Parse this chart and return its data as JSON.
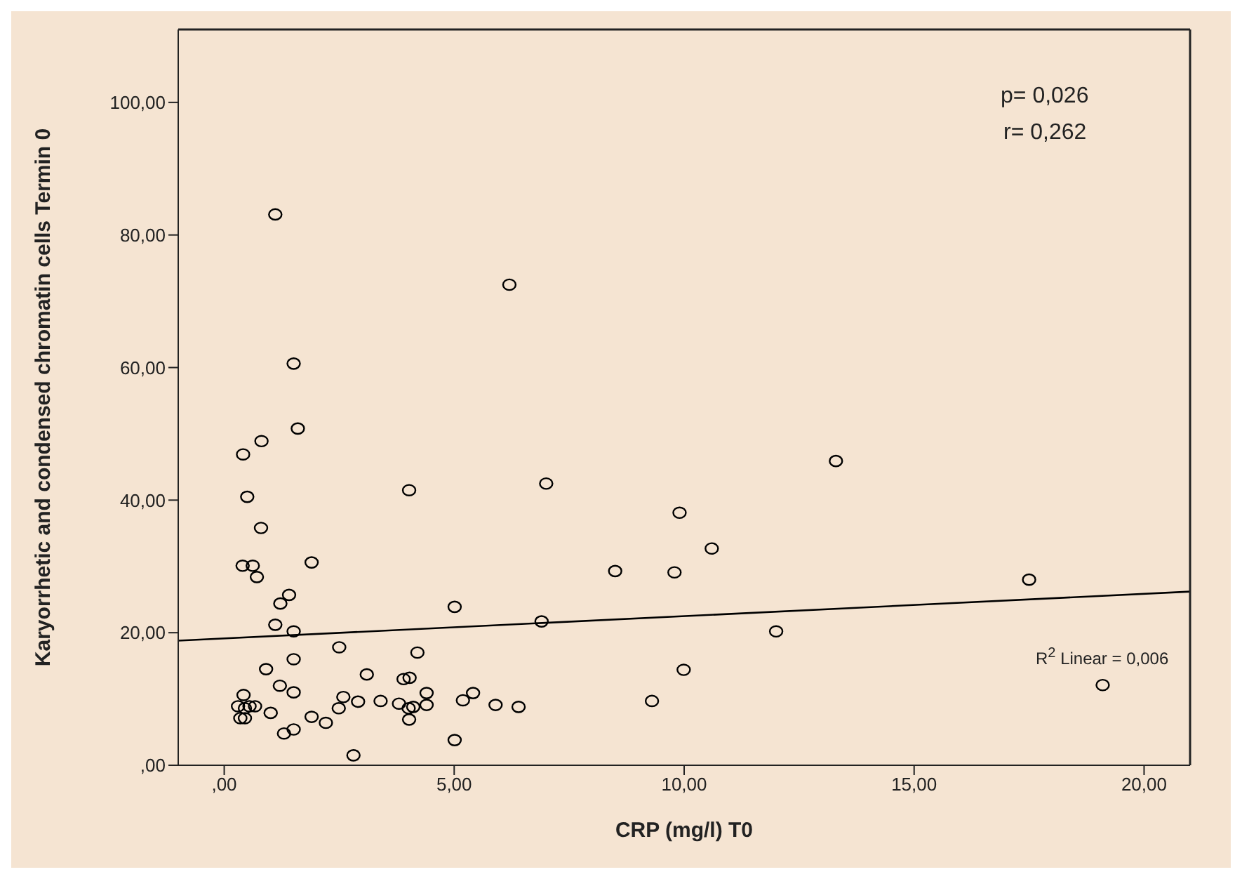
{
  "chart_data": {
    "type": "scatter",
    "xlabel": "CRP (mg/l) T0",
    "ylabel": "Karyorrhetic and condensed chromatin cells Termin 0",
    "xlim": [
      -1,
      21
    ],
    "ylim": [
      0,
      111
    ],
    "xticks": [
      {
        "value": 0,
        "label": ",00"
      },
      {
        "value": 5,
        "label": "5,00"
      },
      {
        "value": 10,
        "label": "10,00"
      },
      {
        "value": 15,
        "label": "15,00"
      },
      {
        "value": 20,
        "label": "20,00"
      }
    ],
    "yticks": [
      {
        "value": 0,
        "label": ",00"
      },
      {
        "value": 20,
        "label": "20,00"
      },
      {
        "value": 40,
        "label": "40,00"
      },
      {
        "value": 60,
        "label": "60,00"
      },
      {
        "value": 80,
        "label": "80,00"
      },
      {
        "value": 100,
        "label": "100,00"
      }
    ],
    "marker": "circle",
    "grid": false,
    "annotations": [
      "p= 0,026",
      "r= 0,262",
      "R$^{2}$ Linear = 0,006"
    ],
    "series": [
      {
        "color": "#000000",
        "x": [
          1.11,
          6.2,
          1.51,
          1.6,
          0.81,
          0.41,
          4.02,
          7.0,
          0.5,
          0.8,
          0.4,
          0.62,
          0.71,
          1.9,
          1.41,
          1.22,
          5.01,
          1.11,
          1.51,
          6.9,
          2.5,
          4.2,
          1.51,
          0.91,
          3.1,
          3.9,
          4.03,
          1.21,
          1.51,
          0.42,
          4.4,
          5.41,
          5.19,
          0.3,
          0.55,
          0.67,
          0.45,
          2.59,
          2.91,
          2.49,
          3.4,
          3.8,
          4.11,
          4.01,
          4.4,
          5.9,
          6.4,
          1.01,
          0.35,
          0.45,
          1.9,
          2.21,
          4.02,
          1.51,
          1.3,
          5.01,
          2.81,
          8.5,
          13.3,
          9.9,
          10.6,
          9.79,
          17.5,
          12.0,
          9.99,
          9.3,
          19.1
        ],
        "values": [
          83.1,
          72.5,
          60.6,
          50.8,
          48.9,
          46.9,
          41.5,
          42.5,
          40.5,
          35.8,
          30.1,
          30.1,
          28.4,
          30.6,
          25.7,
          24.4,
          23.9,
          21.2,
          20.2,
          21.7,
          17.8,
          17.0,
          16.0,
          14.5,
          13.7,
          13.0,
          13.2,
          12.0,
          11.0,
          10.6,
          10.9,
          10.9,
          9.8,
          8.9,
          8.9,
          8.9,
          8.6,
          10.3,
          9.6,
          8.6,
          9.7,
          9.3,
          8.8,
          8.6,
          9.1,
          9.1,
          8.8,
          7.9,
          7.1,
          7.1,
          7.3,
          6.4,
          6.9,
          5.4,
          4.8,
          3.8,
          1.5,
          29.3,
          45.9,
          38.1,
          32.7,
          29.1,
          28.0,
          20.2,
          14.4,
          9.7,
          12.1
        ]
      },
      {
        "type": "line",
        "color": "#000000",
        "x": [
          -1,
          21
        ],
        "values": [
          18.8,
          26.2
        ],
        "marker": "none"
      }
    ]
  }
}
